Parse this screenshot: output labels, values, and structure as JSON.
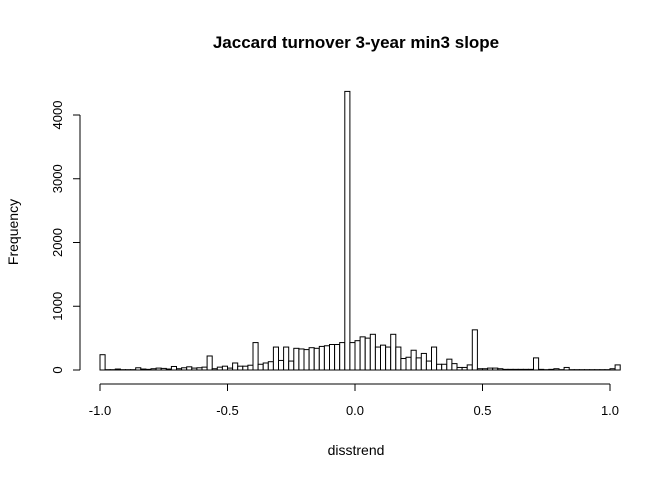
{
  "chart_data": {
    "type": "bar",
    "title": "Jaccard turnover 3-year min3 slope",
    "xlabel": "disstrend",
    "ylabel": "Frequency",
    "xlim": [
      -1.0,
      1.0
    ],
    "ylim": [
      0,
      4300
    ],
    "x_ticks": [
      -1.0,
      -0.5,
      0.0,
      0.5,
      1.0
    ],
    "x_tick_labels": [
      "-1.0",
      "-0.5",
      "0.0",
      "0.5",
      "1.0"
    ],
    "y_ticks": [
      0,
      1000,
      2000,
      3000,
      4000
    ],
    "y_tick_labels": [
      "0",
      "1000",
      "2000",
      "3000",
      "4000"
    ],
    "bin_width": 0.02,
    "bin_start": -1.0,
    "values": [
      240,
      5,
      5,
      15,
      5,
      5,
      5,
      35,
      15,
      10,
      20,
      30,
      25,
      15,
      55,
      20,
      35,
      50,
      30,
      35,
      45,
      220,
      20,
      45,
      60,
      30,
      110,
      60,
      60,
      75,
      430,
      90,
      110,
      130,
      360,
      150,
      360,
      140,
      340,
      330,
      320,
      350,
      340,
      370,
      380,
      400,
      400,
      430,
      4370,
      430,
      460,
      520,
      500,
      560,
      360,
      390,
      360,
      560,
      360,
      180,
      200,
      310,
      190,
      260,
      140,
      360,
      90,
      90,
      170,
      100,
      40,
      40,
      80,
      630,
      20,
      20,
      30,
      30,
      20,
      10,
      10,
      10,
      10,
      10,
      10,
      190,
      10,
      5,
      10,
      20,
      5,
      40,
      5,
      5,
      5,
      5,
      5,
      5,
      5,
      5,
      20,
      80
    ]
  }
}
